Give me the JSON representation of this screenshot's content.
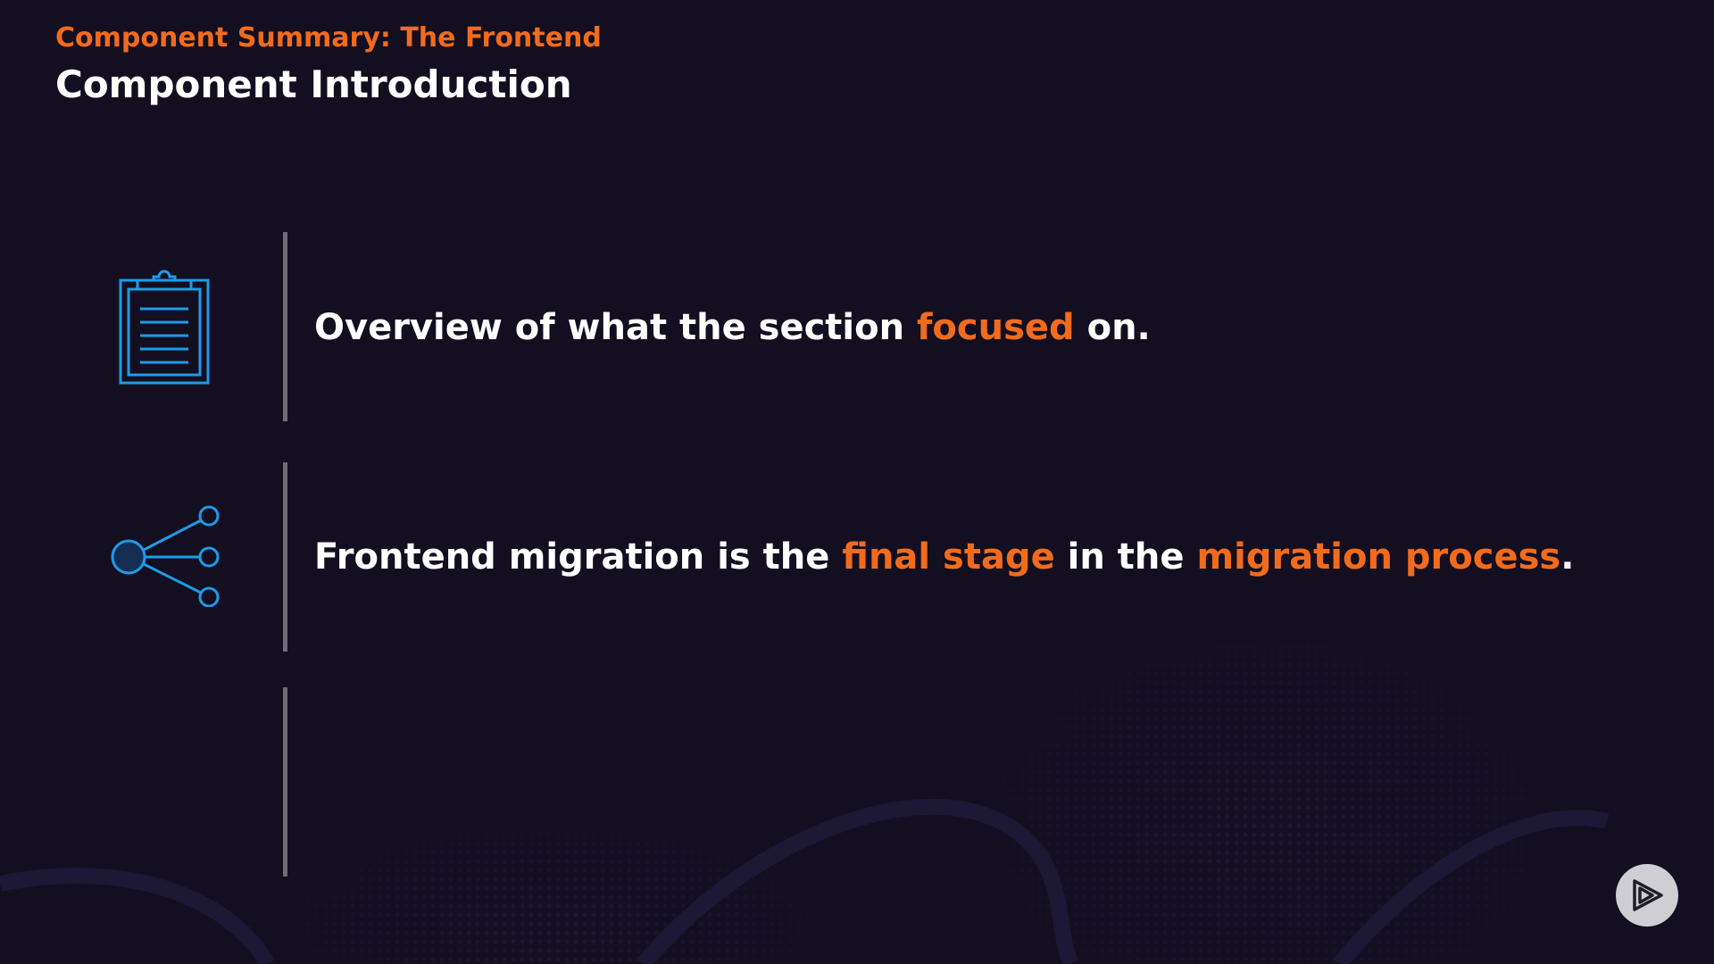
{
  "header": {
    "subtitle": "Component Summary: The Frontend",
    "title": "Component Introduction"
  },
  "rows": [
    {
      "icon": "clipboard-icon",
      "text": [
        {
          "t": "Overview of what the section ",
          "hl": false
        },
        {
          "t": "focused",
          "hl": true
        },
        {
          "t": " on.",
          "hl": false
        }
      ]
    },
    {
      "icon": "share-network-icon",
      "text": [
        {
          "t": "Frontend migration is the ",
          "hl": false
        },
        {
          "t": "final stage",
          "hl": true
        },
        {
          "t": " in the ",
          "hl": false
        },
        {
          "t": "migration process",
          "hl": true
        },
        {
          "t": ".",
          "hl": false
        }
      ]
    },
    {
      "icon": "",
      "text": []
    }
  ],
  "controls": {
    "play_icon": "play-logo-icon"
  },
  "colors": {
    "background": "#130f20",
    "accent": "#f26b1d",
    "icon_stroke": "#1e9be8",
    "divider": "#6e6c76",
    "text": "#ffffff"
  }
}
